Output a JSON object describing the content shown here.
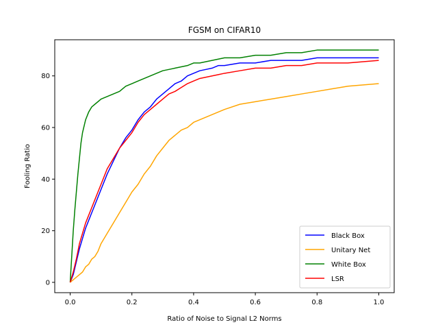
{
  "chart_data": {
    "type": "line",
    "title": "FGSM on CIFAR10",
    "xlabel": "Ratio of Noise to Signal L2 Norms",
    "ylabel": "Fooling Ratio",
    "xlim": [
      -0.05,
      1.05
    ],
    "ylim": [
      -4,
      94
    ],
    "xticks": [
      0.0,
      0.2,
      0.4,
      0.6,
      0.8,
      1.0
    ],
    "xtick_labels": [
      "0.0",
      "0.2",
      "0.4",
      "0.6",
      "0.8",
      "1.0"
    ],
    "yticks": [
      0,
      20,
      40,
      60,
      80
    ],
    "ytick_labels": [
      "0",
      "20",
      "40",
      "60",
      "80"
    ],
    "grid": false,
    "legend_position": "bottom-right",
    "series": [
      {
        "name": "Black Box",
        "color": "#0000ff",
        "x": [
          0,
          0.01,
          0.02,
          0.03,
          0.04,
          0.05,
          0.06,
          0.07,
          0.08,
          0.09,
          0.1,
          0.12,
          0.14,
          0.16,
          0.18,
          0.2,
          0.22,
          0.24,
          0.26,
          0.28,
          0.3,
          0.32,
          0.34,
          0.36,
          0.38,
          0.4,
          0.42,
          0.44,
          0.46,
          0.48,
          0.5,
          0.55,
          0.6,
          0.65,
          0.7,
          0.75,
          0.8,
          0.85,
          0.9,
          0.95,
          1.0
        ],
        "y": [
          0,
          3,
          8,
          13,
          17,
          21,
          24,
          27,
          30,
          33,
          36,
          42,
          47,
          52,
          56,
          59,
          63,
          66,
          68,
          71,
          73,
          75,
          77,
          78,
          80,
          81,
          82,
          82.5,
          83,
          84,
          84,
          85,
          85,
          86,
          86,
          86,
          87,
          87,
          87,
          87,
          87
        ]
      },
      {
        "name": "Unitary Net",
        "color": "#ffa500",
        "x": [
          0,
          0.01,
          0.02,
          0.03,
          0.04,
          0.05,
          0.06,
          0.07,
          0.08,
          0.09,
          0.1,
          0.12,
          0.14,
          0.16,
          0.18,
          0.2,
          0.22,
          0.24,
          0.26,
          0.28,
          0.3,
          0.32,
          0.34,
          0.36,
          0.38,
          0.4,
          0.42,
          0.44,
          0.46,
          0.48,
          0.5,
          0.55,
          0.6,
          0.65,
          0.7,
          0.75,
          0.8,
          0.85,
          0.9,
          0.95,
          1.0
        ],
        "y": [
          0,
          1,
          2,
          3,
          4,
          6,
          7,
          9,
          10,
          12,
          15,
          19,
          23,
          27,
          31,
          35,
          38,
          42,
          45,
          49,
          52,
          55,
          57,
          59,
          60,
          62,
          63,
          64,
          65,
          66,
          67,
          69,
          70,
          71,
          72,
          73,
          74,
          75,
          76,
          76.5,
          77
        ]
      },
      {
        "name": "White Box",
        "color": "#008000",
        "x": [
          0,
          0.005,
          0.01,
          0.015,
          0.02,
          0.025,
          0.03,
          0.035,
          0.04,
          0.05,
          0.06,
          0.07,
          0.08,
          0.09,
          0.1,
          0.12,
          0.14,
          0.16,
          0.18,
          0.2,
          0.22,
          0.24,
          0.26,
          0.28,
          0.3,
          0.32,
          0.34,
          0.36,
          0.38,
          0.4,
          0.42,
          0.44,
          0.46,
          0.48,
          0.5,
          0.55,
          0.6,
          0.65,
          0.7,
          0.75,
          0.8,
          0.85,
          0.9,
          0.95,
          1.0
        ],
        "y": [
          0,
          10,
          20,
          28,
          35,
          42,
          48,
          54,
          58,
          63,
          66,
          68,
          69,
          70,
          71,
          72,
          73,
          74,
          76,
          77,
          78,
          79,
          80,
          81,
          82,
          82.5,
          83,
          83.5,
          84,
          85,
          85,
          85.5,
          86,
          86.5,
          87,
          87,
          88,
          88,
          89,
          89,
          90,
          90,
          90,
          90,
          90
        ]
      },
      {
        "name": "LSR",
        "color": "#ff0000",
        "x": [
          0,
          0.01,
          0.02,
          0.03,
          0.04,
          0.05,
          0.06,
          0.07,
          0.08,
          0.09,
          0.1,
          0.12,
          0.14,
          0.16,
          0.18,
          0.2,
          0.22,
          0.24,
          0.26,
          0.28,
          0.3,
          0.32,
          0.34,
          0.36,
          0.38,
          0.4,
          0.42,
          0.44,
          0.46,
          0.48,
          0.5,
          0.55,
          0.6,
          0.65,
          0.7,
          0.75,
          0.8,
          0.85,
          0.9,
          0.95,
          1.0
        ],
        "y": [
          0,
          4,
          9,
          15,
          19,
          23,
          26,
          29,
          32,
          35,
          38,
          44,
          48,
          52,
          55,
          58,
          62,
          65,
          67,
          69,
          71,
          73,
          74,
          75.5,
          77,
          78,
          79,
          79.5,
          80,
          80.5,
          81,
          82,
          83,
          83,
          84,
          84,
          85,
          85,
          85,
          85.5,
          86
        ]
      }
    ]
  }
}
